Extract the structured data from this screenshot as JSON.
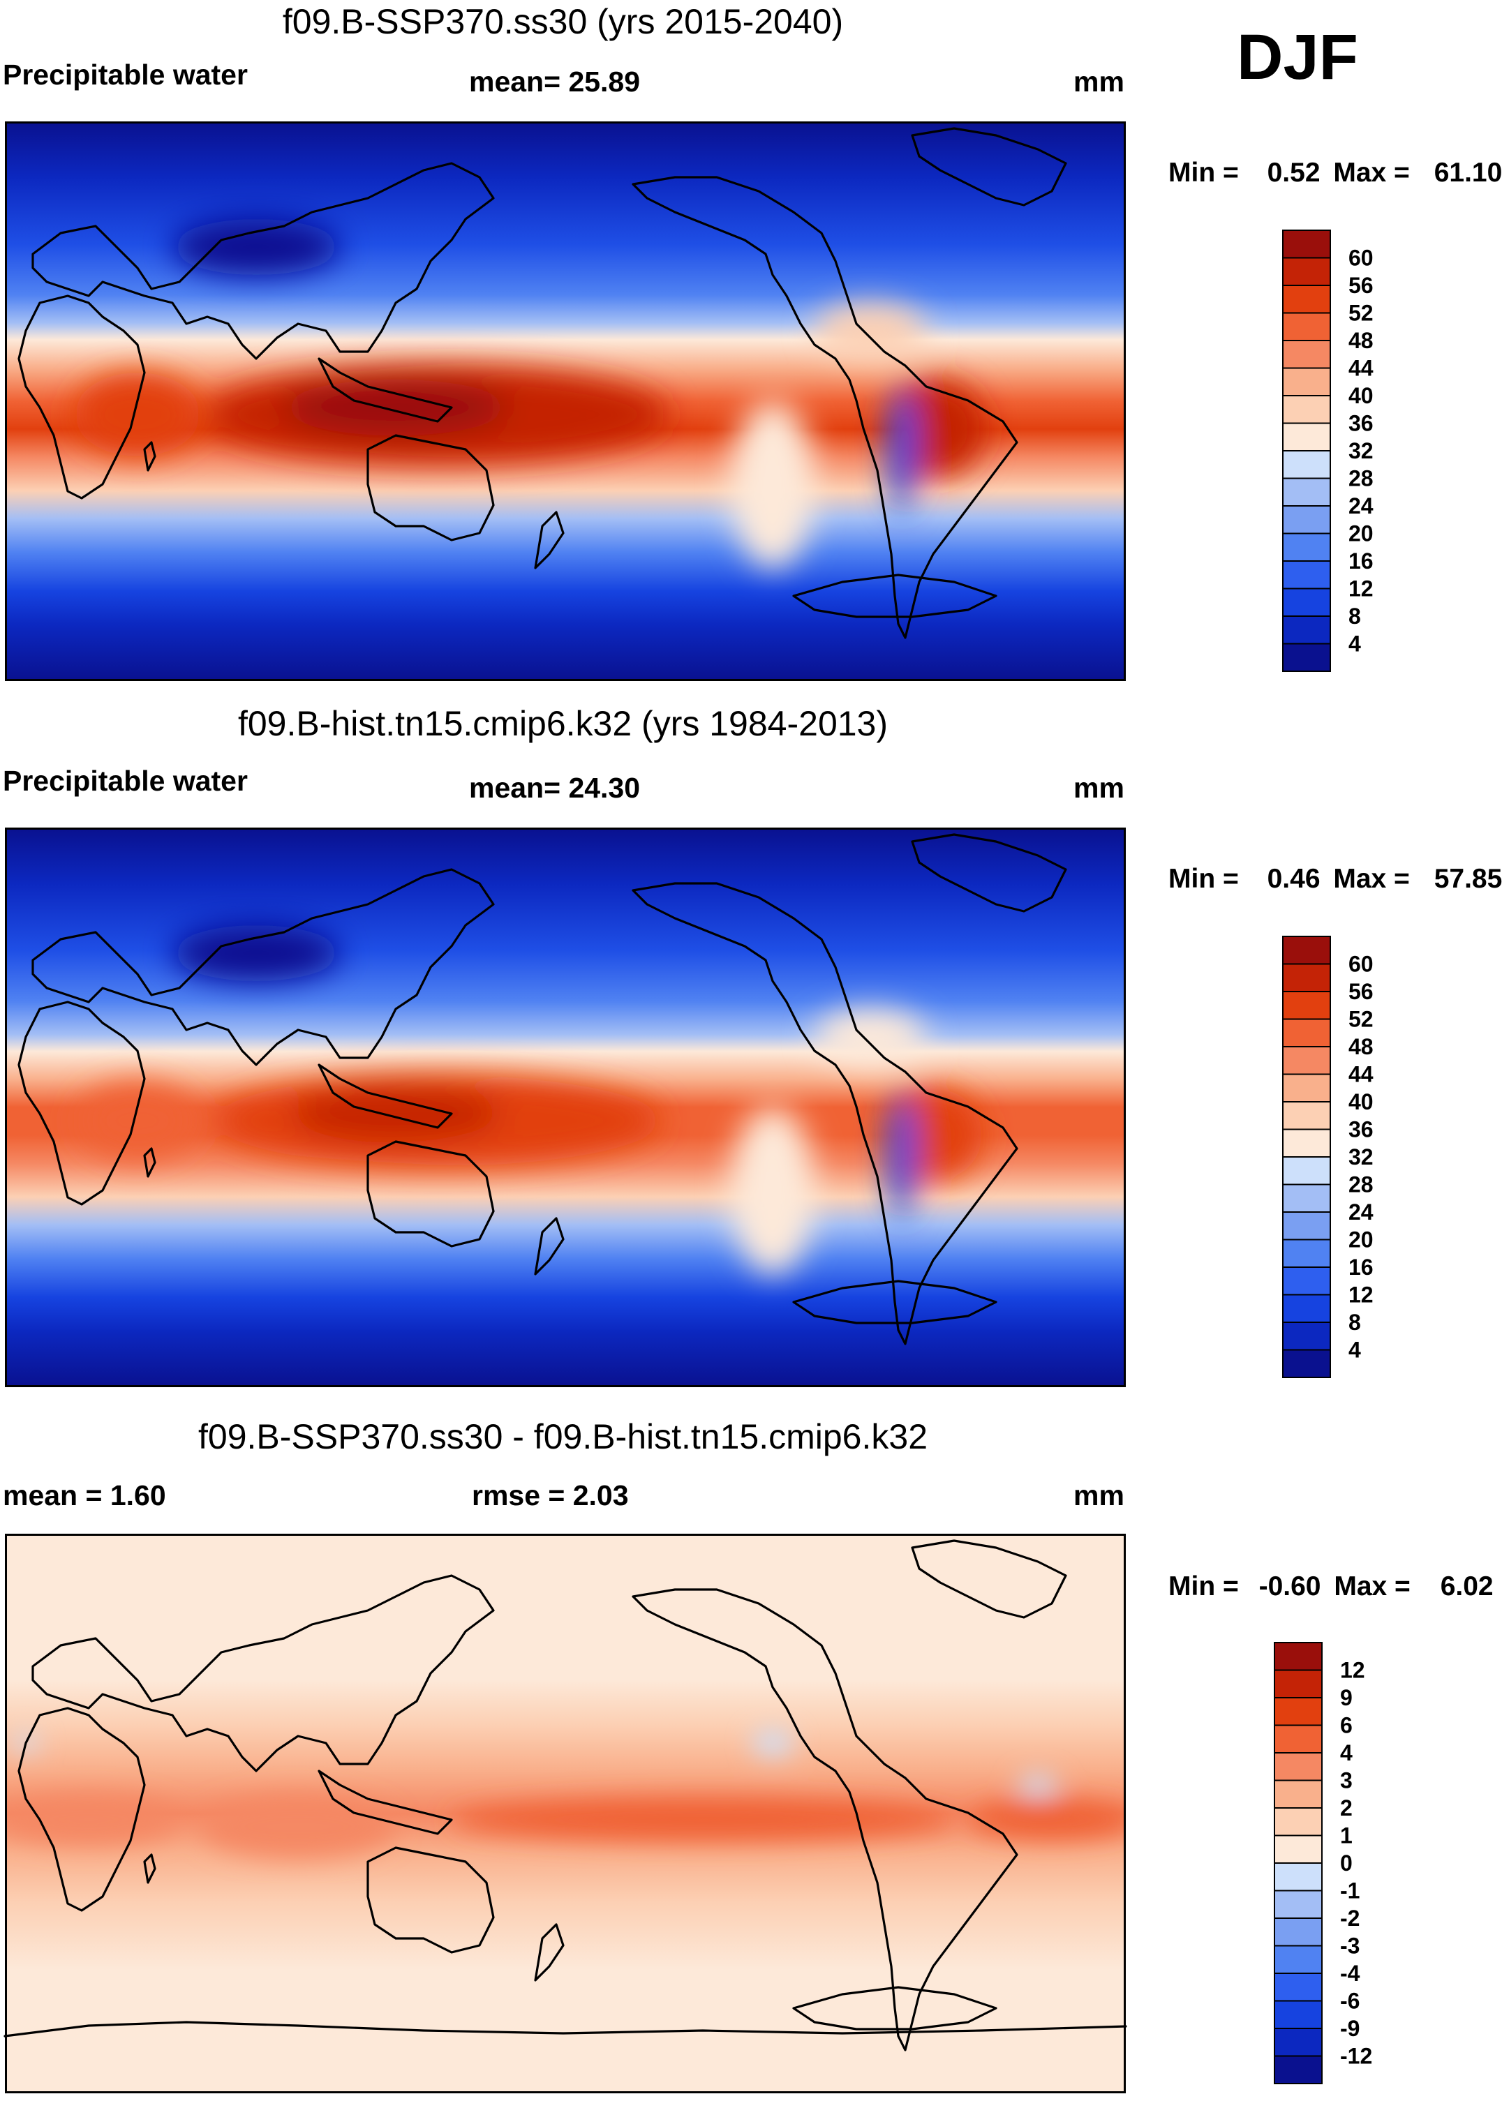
{
  "season": "DJF",
  "units": "mm",
  "legend_min_label": "Min =",
  "legend_max_label": "Max =",
  "panels": [
    {
      "title": "f09.B-SSP370.ss30 (yrs 2015-2040)",
      "variable": "Precipitable water",
      "stat1": "mean=  25.89",
      "min": "0.52",
      "max": "61.10"
    },
    {
      "title": "f09.B-hist.tn15.cmip6.k32 (yrs 1984-2013)",
      "variable": "Precipitable water",
      "stat1": "mean=  24.30",
      "min": "0.46",
      "max": "57.85"
    },
    {
      "title": "f09.B-SSP370.ss30 - f09.B-hist.tn15.cmip6.k32",
      "stat_mean": "mean =   1.60",
      "stat_rmse": "rmse =   2.03",
      "min": "-0.60",
      "max": "6.02"
    }
  ],
  "chart_data": [
    {
      "type": "heatmap",
      "title": "f09.B-SSP370.ss30 (yrs 2015-2040)",
      "subtitle": "Precipitable water",
      "units": "mm",
      "mean": 25.89,
      "min": 0.52,
      "max": 61.1,
      "lon_range": [
        0,
        360
      ],
      "lat_range": [
        -90,
        90
      ],
      "colorbar_levels": [
        4,
        8,
        12,
        16,
        20,
        24,
        28,
        32,
        36,
        40,
        44,
        48,
        52,
        56,
        60
      ],
      "colorbar_colors": [
        "#0a118f",
        "#0c28c0",
        "#1643e0",
        "#2e5fef",
        "#5082f2",
        "#7a9ff2",
        "#a3bef5",
        "#cde0fb",
        "#fde9d9",
        "#fcd0b4",
        "#f9b08c",
        "#f58863",
        "#f06234",
        "#e2400f",
        "#c42306",
        "#9a0f0b"
      ],
      "features": "Warm pool / ITCZ maximum (>56 mm) over the western Pacific and Maritime Continent, tropical band 40-56 mm, minima (<4 mm) over Antarctica, Greenland, the Tibetan Plateau and Arctic land"
    },
    {
      "type": "heatmap",
      "title": "f09.B-hist.tn15.cmip6.k32 (yrs 1984-2013)",
      "subtitle": "Precipitable water",
      "units": "mm",
      "mean": 24.3,
      "min": 0.46,
      "max": 57.85,
      "lon_range": [
        0,
        360
      ],
      "lat_range": [
        -90,
        90
      ],
      "colorbar_levels": [
        4,
        8,
        12,
        16,
        20,
        24,
        28,
        32,
        36,
        40,
        44,
        48,
        52,
        56,
        60
      ],
      "colorbar_colors": [
        "#0a118f",
        "#0c28c0",
        "#1643e0",
        "#2e5fef",
        "#5082f2",
        "#7a9ff2",
        "#a3bef5",
        "#cde0fb",
        "#fde9d9",
        "#fcd0b4",
        "#f9b08c",
        "#f58863",
        "#f06234",
        "#e2400f",
        "#c42306",
        "#9a0f0b"
      ],
      "features": "Same spatial pattern as the SSP370 panel with slightly weaker tropical maxima (peak 52-56 mm)"
    },
    {
      "type": "heatmap",
      "title": "f09.B-SSP370.ss30 - f09.B-hist.tn15.cmip6.k32",
      "units": "mm",
      "mean": 1.6,
      "rmse": 2.03,
      "min": -0.6,
      "max": 6.02,
      "lon_range": [
        0,
        360
      ],
      "lat_range": [
        -90,
        90
      ],
      "colorbar_levels": [
        -12,
        -9,
        -6,
        -4,
        -3,
        -2,
        -1,
        0,
        1,
        2,
        3,
        4,
        6,
        9,
        12
      ],
      "colorbar_colors": [
        "#0a118f",
        "#0c28c0",
        "#1643e0",
        "#2e5fef",
        "#5082f2",
        "#7a9ff2",
        "#a3bef5",
        "#cde0fb",
        "#fde9d9",
        "#fcd0b4",
        "#f9b08c",
        "#f58863",
        "#f06234",
        "#e2400f",
        "#c42306",
        "#9a0f0b"
      ],
      "features": "Nearly uniform 0-1 mm increase poleward, 2-4 mm increases across the tropics with strongest (4-6 mm) along the equatorial Pacific and Atlantic, small negative patches in the subtropical North Pacific and Atlantic"
    }
  ]
}
